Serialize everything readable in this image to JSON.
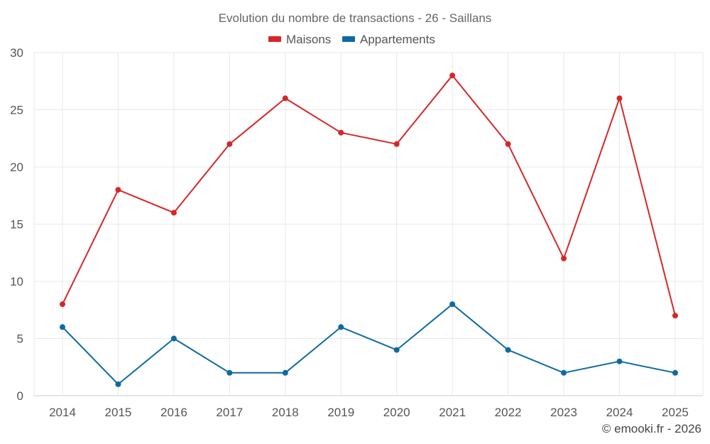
{
  "chart_data": {
    "type": "line",
    "title": "Evolution du nombre de transactions - 26 - Saillans",
    "categories": [
      "2014",
      "2015",
      "2016",
      "2017",
      "2018",
      "2019",
      "2020",
      "2021",
      "2022",
      "2023",
      "2024",
      "2025"
    ],
    "series": [
      {
        "name": "Maisons",
        "color": "#d62728",
        "values": [
          8,
          18,
          16,
          22,
          26,
          23,
          22,
          28,
          22,
          12,
          26,
          7
        ]
      },
      {
        "name": "Appartements",
        "color": "#0e6aa3",
        "values": [
          6,
          1,
          5,
          2,
          2,
          6,
          4,
          8,
          4,
          2,
          3,
          2
        ]
      }
    ],
    "ylim": [
      0,
      30
    ],
    "yticks": [
      0,
      5,
      10,
      15,
      20,
      25,
      30
    ],
    "xlabel": "",
    "ylabel": "",
    "legend_position": "top-center",
    "grid": true
  },
  "credit": "© emooki.fr - 2026"
}
